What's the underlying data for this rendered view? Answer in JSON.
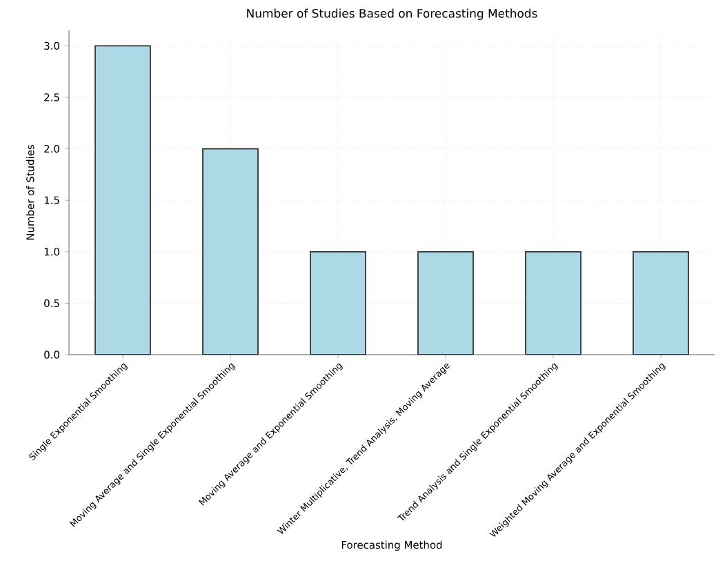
{
  "chart_data": {
    "type": "bar",
    "title": "Number of Studies Based on Forecasting Methods",
    "xlabel": "Forecasting Method",
    "ylabel": "Number of Studies",
    "categories": [
      "Single Exponential Smoothing",
      "Moving Average and Single Exponential Smoothing",
      "Moving Average and Exponential Smoothing",
      "Winter Multiplicative, Trend Analysis, Moving Average",
      "Trend Analysis and Single Exponential Smoothing",
      "Weighted Moving Average and Exponential Smoothing"
    ],
    "values": [
      3,
      2,
      1,
      1,
      1,
      1
    ],
    "color": "#add8e6",
    "ylim": [
      0,
      3.15
    ],
    "yticks": [
      {
        "value": 0,
        "label": "0.0"
      },
      {
        "value": 0.5,
        "label": "0.5"
      },
      {
        "value": 1,
        "label": "1.0"
      },
      {
        "value": 1.5,
        "label": "1.5"
      },
      {
        "value": 2,
        "label": "2.0"
      },
      {
        "value": 2.5,
        "label": "2.5"
      },
      {
        "value": 3,
        "label": "3.0"
      }
    ],
    "grid": true
  }
}
